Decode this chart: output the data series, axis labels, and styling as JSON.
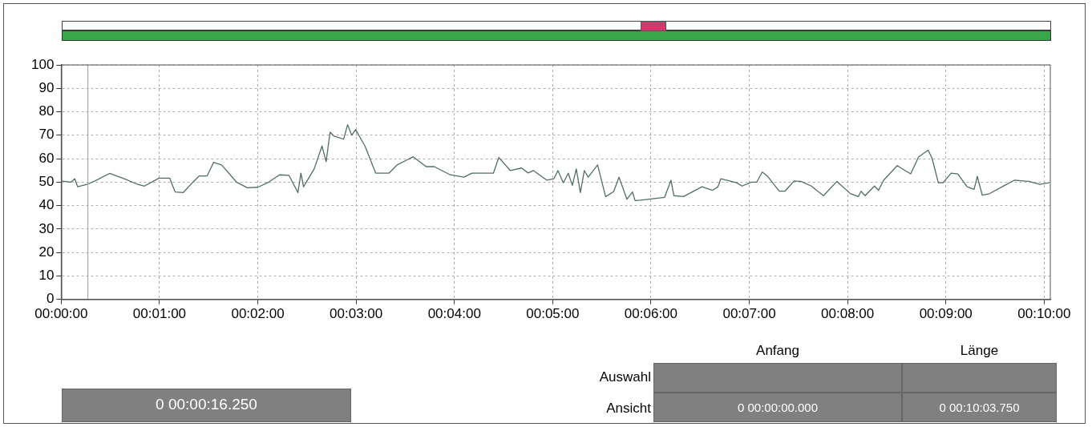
{
  "chart_data": {
    "type": "line",
    "x": [
      0,
      5.9,
      8.3,
      10,
      15.7,
      20.6,
      29.5,
      38.5,
      46.7,
      50.8,
      59.7,
      66.2,
      69.5,
      74.4,
      80.8,
      84.2,
      89,
      93,
      97.9,
      107,
      113.6,
      120,
      126.7,
      133.2,
      139,
      144.5,
      146.3,
      147.9,
      154.4,
      159.2,
      161.7,
      164.1,
      166.5,
      172.4,
      174.8,
      177.3,
      179.7,
      185.4,
      192,
      200,
      205,
      214.8,
      222.8,
      227.7,
      237.5,
      245.8,
      250.7,
      263.8,
      267.1,
      274.2,
      281,
      285,
      288.3,
      296.5,
      300.7,
      303.2,
      306.5,
      309.5,
      312,
      314.4,
      316.9,
      319.3,
      321.7,
      327.4,
      332.3,
      337.2,
      340.5,
      345.3,
      348.7,
      350.3,
      353.6,
      368.3,
      372.2,
      374,
      379.9,
      391.1,
      397.6,
      400.9,
      402.6,
      412.3,
      415.6,
      421.3,
      424.6,
      427.9,
      431,
      438.3,
      441.7,
      447.4,
      451.5,
      457.9,
      465.3,
      473.5,
      481.7,
      486.6,
      488.2,
      490.7,
      496.4,
      498.9,
      502,
      510.3,
      515.2,
      518.5,
      523.4,
      529.2,
      531.6,
      535.4,
      538.3,
      543.2,
      547.3,
      553,
      557.2,
      559.2,
      562.2,
      566.1,
      575.9,
      581.8,
      590.6,
      597.3,
      603
    ],
    "series": [
      {
        "color": "#4f6f60",
        "values": [
          50.5,
          50,
          51.4,
          48,
          49,
          50.5,
          53.7,
          51.4,
          49,
          48.3,
          51.7,
          51.7,
          45.8,
          45.5,
          50.3,
          52.6,
          52.6,
          58.4,
          57.3,
          50,
          47.6,
          47.8,
          50,
          53.1,
          52.9,
          45.5,
          53.8,
          48,
          55.6,
          65.4,
          58.7,
          71.3,
          69.6,
          68.3,
          74.5,
          70,
          72.4,
          65.4,
          53.8,
          53.8,
          57.3,
          60.8,
          56.6,
          56.6,
          53.1,
          52.1,
          53.8,
          53.8,
          60.5,
          54.9,
          56,
          53.9,
          54.9,
          50.8,
          51.4,
          54.9,
          49.7,
          53.8,
          48.6,
          55.6,
          45.5,
          54.9,
          52.1,
          57.3,
          43.8,
          45.9,
          52.1,
          42.7,
          45.8,
          42.1,
          42.3,
          43.5,
          50.8,
          44.2,
          43.8,
          48,
          46.5,
          48,
          51.4,
          49.7,
          48.3,
          50,
          50,
          54.3,
          52.6,
          46.1,
          46.1,
          50.5,
          50.3,
          48.3,
          44.2,
          50.3,
          45.1,
          43.8,
          46.1,
          44.2,
          48.3,
          46.5,
          50.8,
          57,
          54.9,
          53.5,
          60.8,
          63.6,
          60.1,
          49.7,
          49.7,
          53.8,
          53.5,
          48,
          46.9,
          52.4,
          44.4,
          44.9,
          48.6,
          50.8,
          50.3,
          49,
          49.7
        ]
      }
    ],
    "xlim": [
      0,
      603.75
    ],
    "xticks": [
      {
        "value": 0,
        "label": "00:00:00"
      },
      {
        "value": 60,
        "label": "00:01:00"
      },
      {
        "value": 120,
        "label": "00:02:00"
      },
      {
        "value": 180,
        "label": "00:03:00"
      },
      {
        "value": 240,
        "label": "00:04:00"
      },
      {
        "value": 300,
        "label": "00:05:00"
      },
      {
        "value": 360,
        "label": "00:06:00"
      },
      {
        "value": 420,
        "label": "00:07:00"
      },
      {
        "value": 480,
        "label": "00:08:00"
      },
      {
        "value": 540,
        "label": "00:09:00"
      },
      {
        "value": 600,
        "label": "00:10:00"
      }
    ],
    "ylim": [
      0,
      100
    ],
    "yticks": [
      0,
      10,
      20,
      30,
      40,
      50,
      60,
      70,
      80,
      90,
      100
    ],
    "grid": true,
    "line_style": "solid",
    "legend": false,
    "ref_lines": [
      {
        "axis": "x",
        "value": 16.25,
        "color": "#a0a0a0"
      }
    ],
    "annotations": [
      "0 00:00:16.250",
      "Anfang",
      "Länge",
      "Auswahl",
      "Ansicht",
      "0 00:00:00.000",
      "0 00:10:03.750"
    ]
  }
}
